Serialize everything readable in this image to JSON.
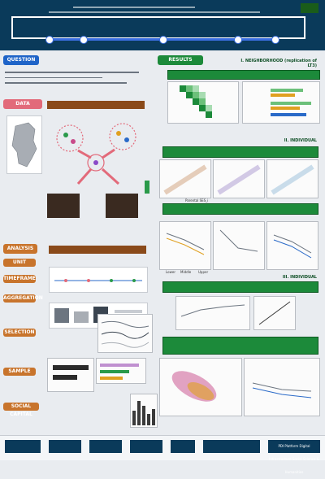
{
  "header": {
    "logo_top": "",
    "footer_logo_left": "",
    "footer_logo_right": "PDI Platform Digital Infrastructure Social Science & Humanities"
  },
  "sections": {
    "question": "QUESTION",
    "data": "DATA",
    "analysis": "ANALYSIS",
    "results": "RESULTS"
  },
  "analysis_steps": [
    "UNIT",
    "TIMEFRAME",
    "AGGREGATION",
    "SELECTION",
    "SAMPLE",
    "SOCIAL CAPITAL"
  ],
  "result_labels": {
    "r1": "I. NEIGHBORHOOD (replication of LT3)",
    "r2": "II. INDIVIDUAL",
    "r3": "III. INDIVIDUAL"
  },
  "axis_labels": {
    "parental_ses": "Parental SES_i",
    "lower": "Lower",
    "middle": "Middle",
    "upper": "Upper"
  },
  "colors": {
    "header": "#0a3a5a",
    "question": "#1f64c8",
    "results": "#1c8a3a",
    "data": "#e26a7a",
    "analysis": "#c8742c"
  }
}
